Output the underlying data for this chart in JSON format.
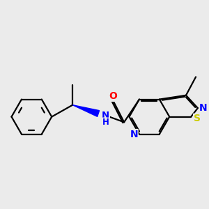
{
  "bg_color": "#ebebeb",
  "bond_color": "#000000",
  "atom_colors": {
    "O": "#ff0000",
    "N": "#0000ff",
    "S": "#cccc00",
    "C": "#000000"
  },
  "bond_lw": 1.6,
  "font_size": 9
}
